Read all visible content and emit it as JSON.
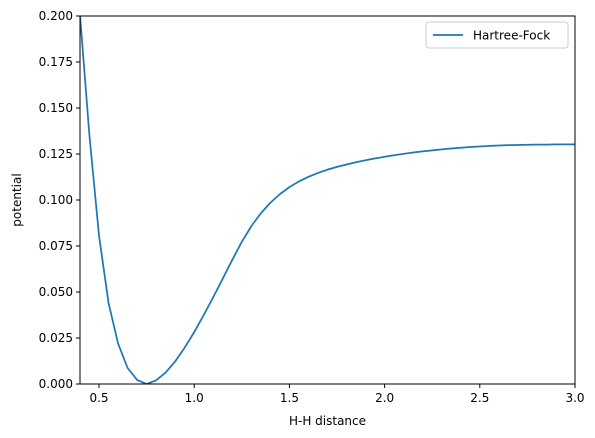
{
  "chart_data": {
    "type": "line",
    "xlabel": "H-H distance",
    "ylabel": "potential",
    "xlim": [
      0.4,
      3.0
    ],
    "ylim": [
      0.0,
      0.2
    ],
    "grid": false,
    "legend_position": "top-right",
    "x_ticks": [
      0.5,
      1.0,
      1.5,
      2.0,
      2.5,
      3.0
    ],
    "x_tick_labels": [
      "0.5",
      "1.0",
      "1.5",
      "2.0",
      "2.5",
      "3.0"
    ],
    "y_ticks": [
      0.0,
      0.025,
      0.05,
      0.075,
      0.1,
      0.125,
      0.15,
      0.175,
      0.2
    ],
    "y_tick_labels": [
      "0.000",
      "0.025",
      "0.050",
      "0.075",
      "0.100",
      "0.125",
      "0.150",
      "0.175",
      "0.200"
    ],
    "series": [
      {
        "name": "Hartree-Fock",
        "color": "#1f77b4",
        "x": [
          0.4,
          0.45,
          0.5,
          0.55,
          0.6,
          0.65,
          0.7,
          0.75,
          0.8,
          0.85,
          0.9,
          0.95,
          1.0,
          1.05,
          1.1,
          1.15,
          1.2,
          1.25,
          1.3,
          1.35,
          1.4,
          1.45,
          1.5,
          1.55,
          1.6,
          1.65,
          1.7,
          1.75,
          1.8,
          1.85,
          1.9,
          1.95,
          2.0,
          2.05,
          2.1,
          2.15,
          2.2,
          2.25,
          2.3,
          2.35,
          2.4,
          2.45,
          2.5,
          2.55,
          2.6,
          2.65,
          2.7,
          2.75,
          2.8,
          2.85,
          2.9,
          2.95,
          3.0
        ],
        "values": [
          0.2005,
          0.1345,
          0.0805,
          0.044,
          0.022,
          0.0087,
          0.0022,
          0.0,
          0.002,
          0.0062,
          0.0123,
          0.0198,
          0.0282,
          0.0375,
          0.0472,
          0.0573,
          0.0675,
          0.0773,
          0.0858,
          0.0928,
          0.0985,
          0.1032,
          0.107,
          0.1101,
          0.1126,
          0.1147,
          0.1165,
          0.118,
          0.1193,
          0.1205,
          0.1216,
          0.1226,
          0.1235,
          0.1243,
          0.1251,
          0.1258,
          0.1264,
          0.127,
          0.1275,
          0.128,
          0.1284,
          0.1288,
          0.1291,
          0.1294,
          0.1296,
          0.1298,
          0.1299,
          0.13,
          0.1301,
          0.1301,
          0.1302,
          0.1302,
          0.1302
        ]
      }
    ]
  }
}
